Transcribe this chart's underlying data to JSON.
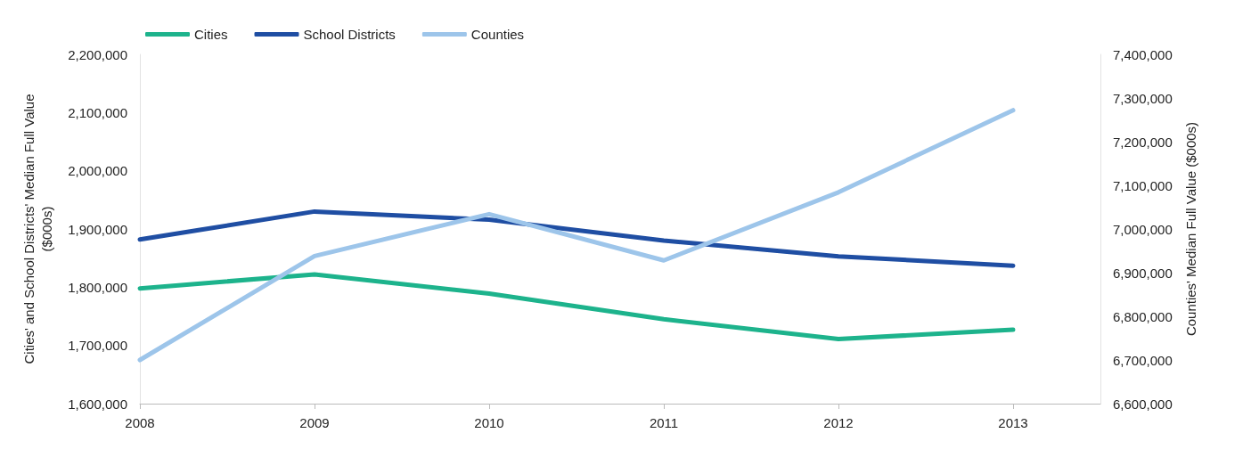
{
  "chart_data": {
    "type": "line",
    "ylabel": "Cities' and School Districts' Median Full Value\n($000s)",
    "y2label": "Counties' Median Full Value ($000s)",
    "x": [
      2008,
      2009,
      2010,
      2011,
      2012,
      2013
    ],
    "xlim": [
      2008,
      2013.5
    ],
    "xticks": [
      2008,
      2009,
      2010,
      2011,
      2012,
      2013
    ],
    "ylim": [
      1600000,
      2200000
    ],
    "yticks": [
      {
        "value": 1600000,
        "label": "1,600,000"
      },
      {
        "value": 1700000,
        "label": "1,700,000"
      },
      {
        "value": 1800000,
        "label": "1,800,000"
      },
      {
        "value": 1900000,
        "label": "1,900,000"
      },
      {
        "value": 2000000,
        "label": "2,000,000"
      },
      {
        "value": 2100000,
        "label": "2,100,000"
      },
      {
        "value": 2200000,
        "label": "2,200,000"
      }
    ],
    "y2lim": [
      6600000,
      7400000
    ],
    "y2ticks": [
      {
        "value": 6600000,
        "label": "6,600,000"
      },
      {
        "value": 6700000,
        "label": "6,700,000"
      },
      {
        "value": 6800000,
        "label": "6,800,000"
      },
      {
        "value": 6900000,
        "label": "6,900,000"
      },
      {
        "value": 7000000,
        "label": "7,000,000"
      },
      {
        "value": 7100000,
        "label": "7,100,000"
      },
      {
        "value": 7200000,
        "label": "7,200,000"
      },
      {
        "value": 7300000,
        "label": "7,300,000"
      },
      {
        "value": 7400000,
        "label": "7,400,000"
      }
    ],
    "series": [
      {
        "name": "Cities",
        "color": "#1db38c",
        "values": [
          1798000,
          1822000,
          1789000,
          1745000,
          1711000,
          1727000
        ]
      },
      {
        "name": "School Districts",
        "color": "#1f4ea3",
        "values": [
          1882000,
          1930000,
          1916000,
          1880000,
          1853000,
          1837000
        ]
      },
      {
        "name": "Counties",
        "color": "#9dc5ea",
        "axis": "y2",
        "values": [
          6700000,
          6938000,
          7034000,
          6928000,
          7084000,
          7272000
        ]
      }
    ],
    "grid": false,
    "legend": "top left",
    "marker": "none",
    "line_style": "solid"
  }
}
